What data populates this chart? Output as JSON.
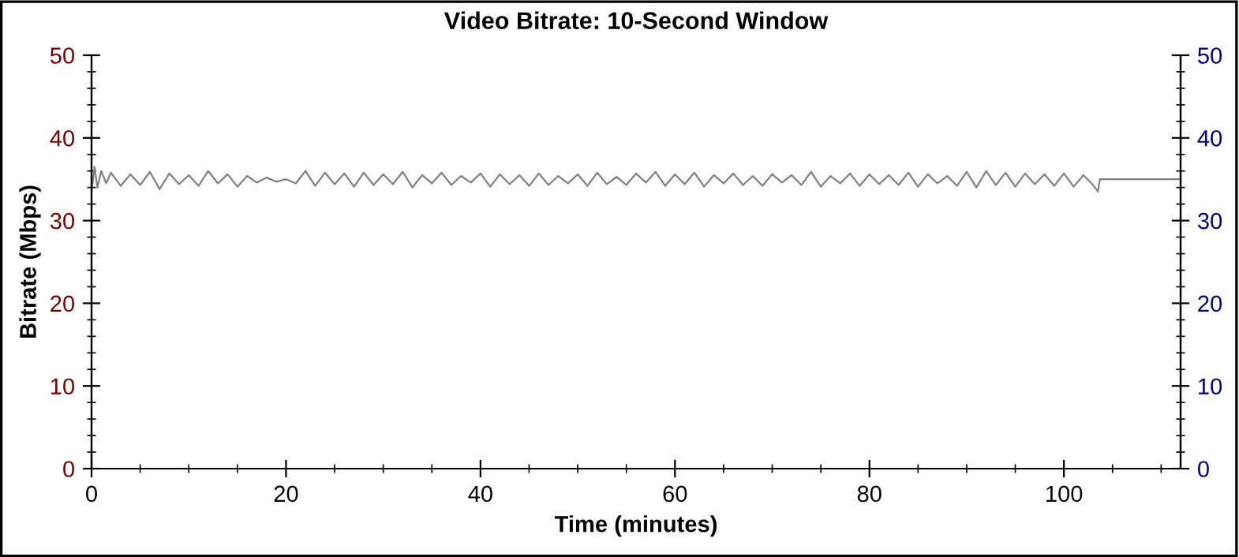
{
  "chart_data": {
    "type": "line",
    "title": "Video Bitrate: 10-Second Window",
    "xlabel": "Time (minutes)",
    "ylabel": "Bitrate (Mbps)",
    "xlim": [
      0,
      112
    ],
    "xticks": [
      0,
      20,
      40,
      60,
      80,
      100
    ],
    "ylim": [
      0,
      50
    ],
    "yticks": [
      0,
      10,
      20,
      30,
      40,
      50
    ],
    "y2lim": [
      0,
      50
    ],
    "y2ticks": [
      0,
      10,
      20,
      30,
      40,
      50
    ],
    "grid": false,
    "legend": false,
    "marker": "none",
    "line_style": "solid",
    "series": [
      {
        "color": "#808080",
        "x": [
          0,
          0.3,
          0.6,
          1,
          1.5,
          2,
          3,
          4,
          5,
          6,
          7,
          8,
          9,
          10,
          11,
          12,
          13,
          14,
          15,
          16,
          17,
          18,
          19,
          20,
          21,
          22,
          23,
          24,
          25,
          26,
          27,
          28,
          29,
          30,
          31,
          32,
          33,
          34,
          35,
          36,
          37,
          38,
          39,
          40,
          41,
          42,
          43,
          44,
          45,
          46,
          47,
          48,
          49,
          50,
          51,
          52,
          53,
          54,
          55,
          56,
          57,
          58,
          59,
          60,
          61,
          62,
          63,
          64,
          65,
          66,
          67,
          68,
          69,
          70,
          71,
          72,
          73,
          74,
          75,
          76,
          77,
          78,
          79,
          80,
          81,
          82,
          83,
          84,
          85,
          86,
          87,
          88,
          89,
          90,
          91,
          92,
          93,
          94,
          95,
          96,
          97,
          98,
          99,
          100,
          101,
          102,
          103,
          103.5,
          103.7,
          112
        ],
        "values": [
          33.5,
          36.5,
          34.0,
          36.0,
          34.5,
          35.8,
          34.2,
          35.6,
          34.3,
          35.9,
          33.8,
          35.7,
          34.4,
          35.5,
          34.2,
          36.0,
          34.5,
          35.6,
          34.1,
          35.4,
          34.6,
          35.2,
          34.7,
          35.0,
          34.5,
          36.0,
          34.2,
          35.8,
          34.4,
          35.7,
          34.1,
          35.8,
          34.3,
          35.6,
          34.4,
          35.9,
          34.0,
          35.5,
          34.5,
          35.8,
          34.3,
          35.4,
          34.6,
          35.7,
          34.1,
          35.6,
          34.4,
          35.5,
          34.2,
          35.7,
          34.3,
          35.4,
          34.5,
          35.6,
          34.2,
          35.8,
          34.4,
          35.3,
          34.3,
          35.7,
          34.6,
          35.9,
          34.2,
          35.6,
          34.4,
          35.8,
          34.1,
          35.5,
          34.5,
          35.7,
          34.3,
          35.4,
          34.2,
          35.6,
          34.6,
          35.5,
          34.3,
          35.9,
          34.1,
          35.4,
          34.5,
          35.7,
          34.2,
          35.6,
          34.4,
          35.5,
          34.3,
          35.8,
          34.1,
          35.6,
          34.5,
          35.4,
          34.2,
          35.9,
          34.0,
          36.0,
          34.3,
          35.8,
          34.1,
          35.7,
          34.4,
          35.6,
          34.2,
          35.7,
          34.1,
          35.5,
          34.3,
          33.5,
          35.0,
          35.0
        ]
      }
    ]
  }
}
